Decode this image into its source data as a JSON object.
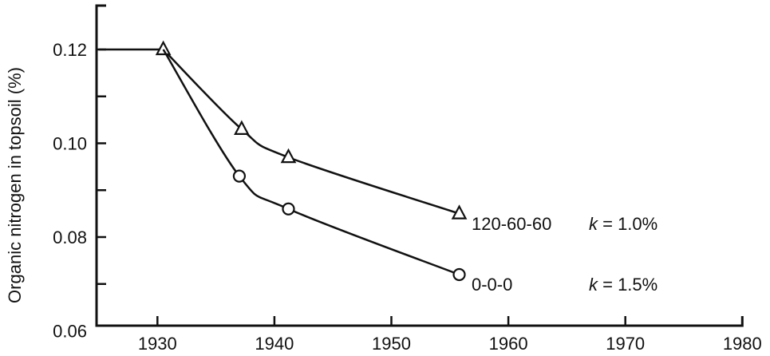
{
  "chart_data": {
    "type": "line",
    "title": "",
    "xlabel": "",
    "ylabel": "Organic nitrogen in topsoil (%)",
    "xlim": [
      1925,
      1980
    ],
    "ylim": [
      0.06,
      0.13
    ],
    "xticks": [
      "1930",
      "1940",
      "1950",
      "1960",
      "1970",
      "1980"
    ],
    "yticks": [
      "0.06",
      "0.08",
      "0.10",
      "0.12"
    ],
    "grid": false,
    "initial_level": {
      "x": [
        1925,
        1930.5
      ],
      "y": [
        0.12,
        0.12
      ]
    },
    "series": [
      {
        "name": "120-60-60",
        "k_prefix": "k",
        "k_value": " = 1.0%",
        "marker": "triangle",
        "x": [
          1930.5,
          1937.2,
          1941.2,
          1955.8
        ],
        "y": [
          0.12,
          0.103,
          0.097,
          0.085
        ]
      },
      {
        "name": "0-0-0",
        "k_prefix": "k",
        "k_value": " = 1.5%",
        "marker": "circle",
        "x": [
          1930.5,
          1937.0,
          1941.2,
          1955.8
        ],
        "y": [
          0.12,
          0.093,
          0.086,
          0.072
        ]
      }
    ],
    "colors": {
      "line": "#111111",
      "background": "#ffffff"
    }
  }
}
